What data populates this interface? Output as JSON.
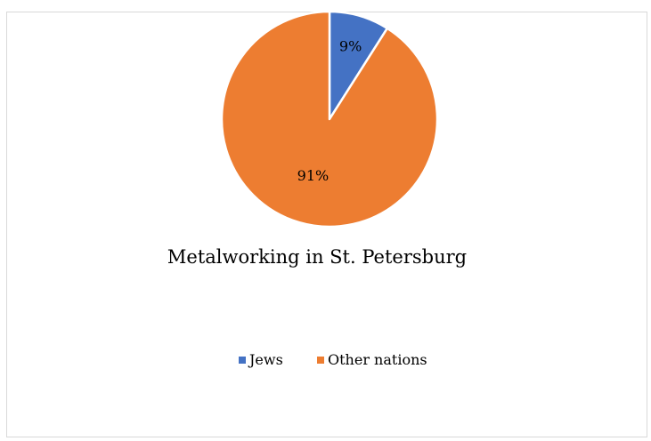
{
  "chart_data": {
    "type": "pie",
    "title": "Metalworking in St. Petersburg",
    "categories": [
      "Jews",
      "Other nations"
    ],
    "values": [
      9,
      91
    ],
    "data_labels": [
      "9%",
      "91%"
    ],
    "colors": [
      "#4472c4",
      "#ed7d31"
    ],
    "legend_position": "bottom",
    "start_angle_deg": 0,
    "direction": "clockwise"
  }
}
